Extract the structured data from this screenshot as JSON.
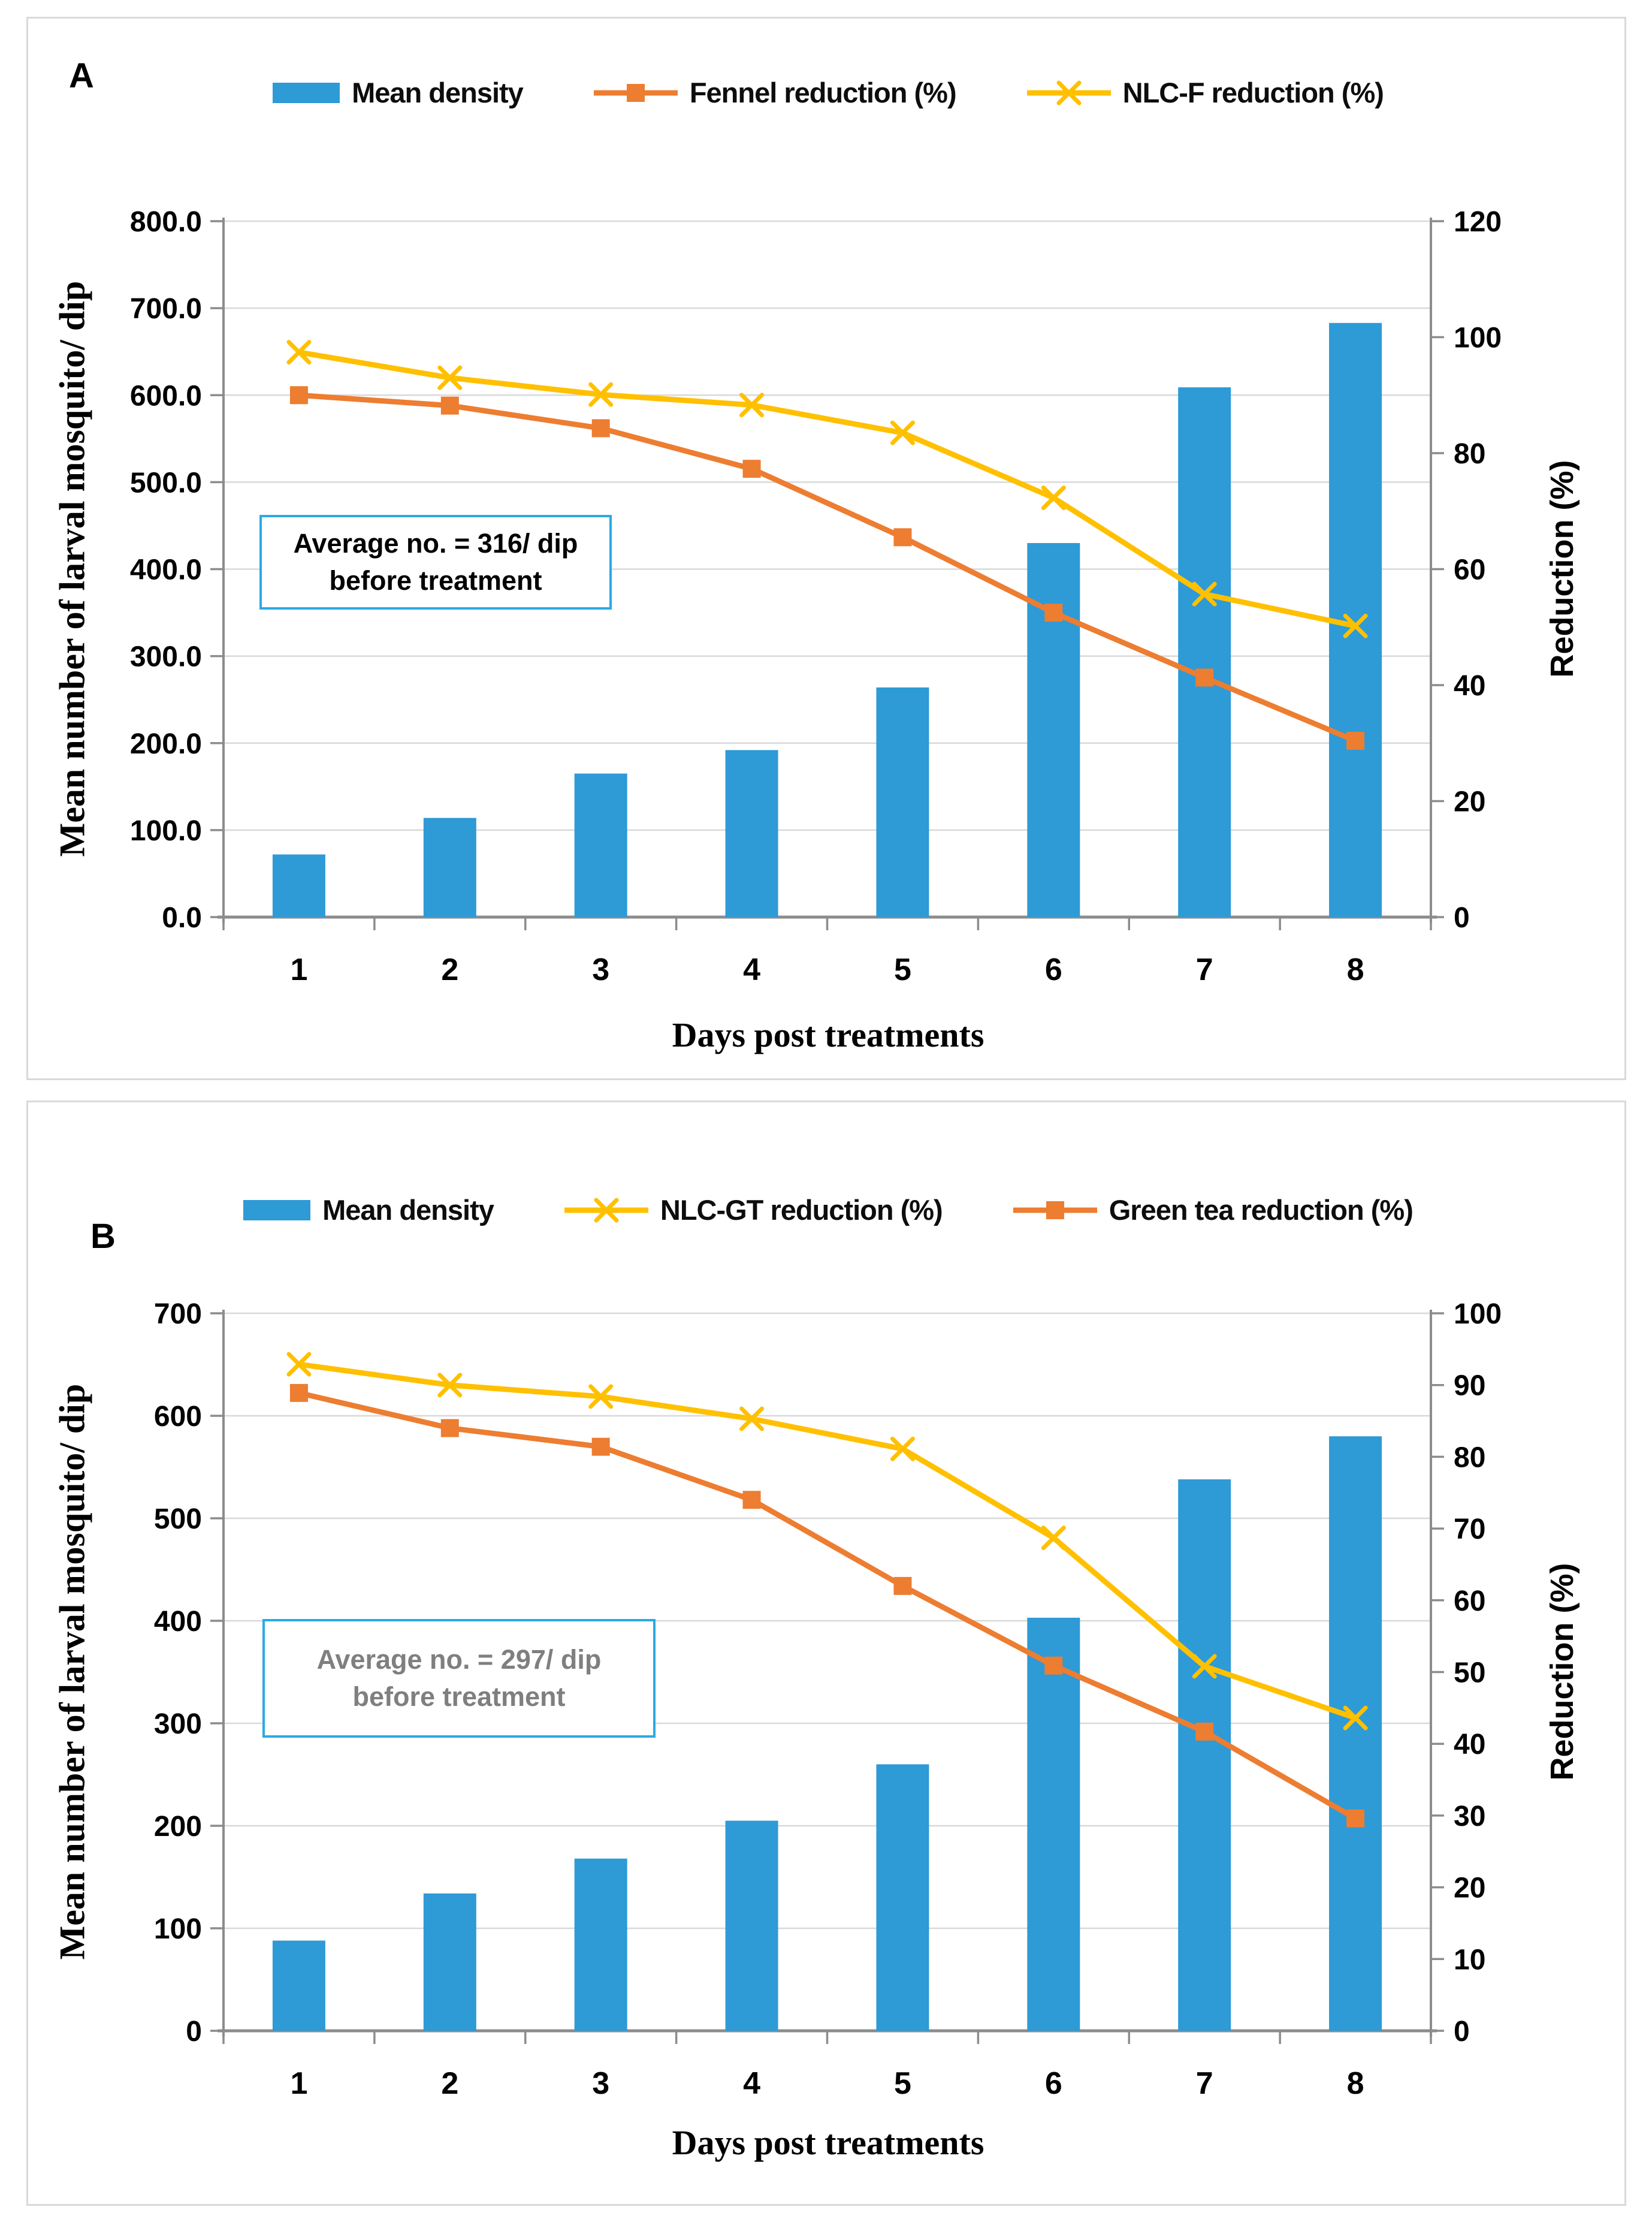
{
  "figure": {
    "background": "#ffffff",
    "panel_border_color": "#d9d9d9",
    "grid_color": "#d9d9d9",
    "axis_color": "#8c8c8c",
    "annotation_border_color": "#2baae2"
  },
  "chart_data": [
    {
      "type": "bar+line",
      "panel_label": "A",
      "xlabel": "Days post treatments",
      "ylabel_left": "Mean number of larval mosquito/ dip",
      "ylabel_right": "Reduction (%)",
      "categories": [
        1,
        2,
        3,
        4,
        5,
        6,
        7,
        8
      ],
      "y_left": {
        "min": 0,
        "max": 800,
        "step": 100,
        "decimals": 1
      },
      "y_right": {
        "min": 0,
        "max": 120,
        "step": 20,
        "decimals": 0
      },
      "grid": true,
      "legend_position": "top",
      "annotation": {
        "line1": "Average no. = 316/ dip",
        "line2": "before treatment",
        "color": "#000000"
      },
      "series": [
        {
          "name": "Mean density",
          "type": "bar",
          "axis": "left",
          "color": "#2e9ad6",
          "values": [
            72,
            114,
            165,
            192,
            264,
            430,
            609,
            683
          ]
        },
        {
          "name": "Fennel reduction (%)",
          "type": "line",
          "marker": "square",
          "axis": "right",
          "color": "#ed7d31",
          "values": [
            90.0,
            88.2,
            84.3,
            77.3,
            65.5,
            52.5,
            41.3,
            30.4
          ]
        },
        {
          "name": "NLC-F reduction (%)",
          "type": "line",
          "marker": "x",
          "axis": "right",
          "color": "#ffc000",
          "values": [
            97.4,
            93.0,
            90.1,
            88.3,
            83.5,
            72.3,
            55.7,
            50.2
          ]
        }
      ]
    },
    {
      "type": "bar+line",
      "panel_label": "B",
      "xlabel": "Days post treatments",
      "ylabel_left": "Mean number of larval mosquito/ dip",
      "ylabel_right": "Reduction (%)",
      "categories": [
        1,
        2,
        3,
        4,
        5,
        6,
        7,
        8
      ],
      "y_left": {
        "min": 0,
        "max": 700,
        "step": 100,
        "decimals": 0
      },
      "y_right": {
        "min": 0,
        "max": 100,
        "step": 10,
        "decimals": 0
      },
      "grid": true,
      "legend_position": "top",
      "annotation": {
        "line1": "Average no. = 297/ dip",
        "line2": "before treatment",
        "color": "#7f7f7f"
      },
      "series": [
        {
          "name": "Mean density",
          "type": "bar",
          "axis": "left",
          "color": "#2e9ad6",
          "values": [
            88,
            134,
            168,
            205,
            260,
            403,
            538,
            580
          ]
        },
        {
          "name": "NLC-GT reduction (%)",
          "type": "line",
          "marker": "x",
          "axis": "right",
          "color": "#ffc000",
          "values": [
            92.9,
            90.0,
            88.4,
            85.3,
            81.1,
            68.7,
            50.8,
            43.6
          ]
        },
        {
          "name": "Green tea reduction (%)",
          "type": "line",
          "marker": "square",
          "axis": "right",
          "color": "#ed7d31",
          "values": [
            88.9,
            84.0,
            81.4,
            74.0,
            62.0,
            50.9,
            41.7,
            29.6
          ]
        }
      ]
    }
  ]
}
